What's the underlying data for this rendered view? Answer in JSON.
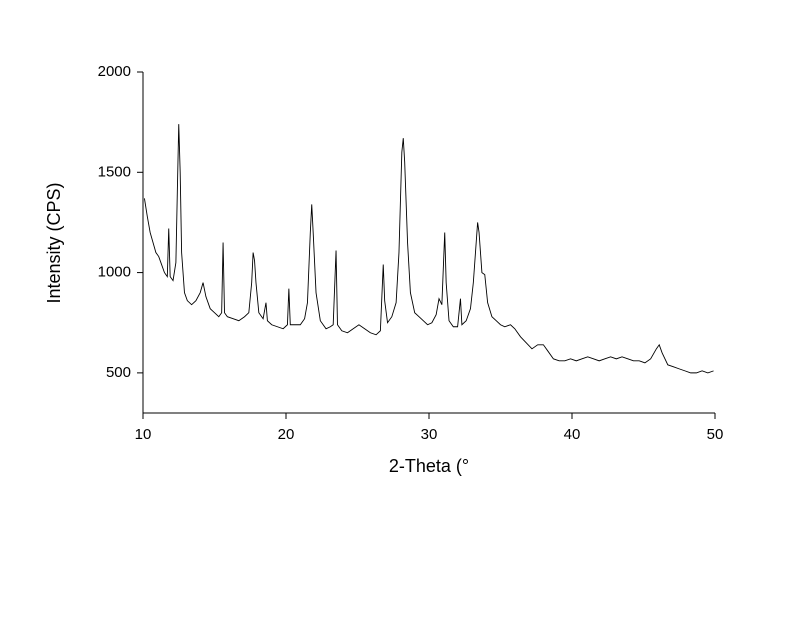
{
  "chart_data": {
    "type": "line",
    "xlabel": "2-Theta (°",
    "ylabel": "Intensity (CPS)",
    "color": "#000000",
    "xlim": [
      10,
      50
    ],
    "xticks": [
      10,
      20,
      30,
      40,
      50
    ],
    "ylim": [
      300,
      2000
    ],
    "yticks": [
      500,
      1000,
      1500,
      2000
    ],
    "grid": false,
    "x": [
      10.1,
      10.3,
      10.5,
      10.7,
      10.9,
      11.1,
      11.3,
      11.5,
      11.7,
      11.8,
      11.9,
      12.1,
      12.3,
      12.4,
      12.5,
      12.6,
      12.7,
      12.9,
      13.1,
      13.4,
      13.7,
      14.0,
      14.2,
      14.4,
      14.7,
      15.0,
      15.3,
      15.5,
      15.6,
      15.7,
      15.9,
      16.3,
      16.7,
      17.1,
      17.4,
      17.6,
      17.7,
      17.8,
      17.9,
      18.1,
      18.4,
      18.6,
      18.7,
      19.0,
      19.4,
      19.8,
      20.1,
      20.2,
      20.3,
      20.6,
      21.0,
      21.3,
      21.5,
      21.7,
      21.8,
      21.9,
      22.1,
      22.4,
      22.8,
      23.1,
      23.3,
      23.5,
      23.6,
      23.9,
      24.3,
      24.7,
      25.1,
      25.5,
      25.9,
      26.3,
      26.6,
      26.8,
      26.9,
      27.1,
      27.4,
      27.7,
      27.9,
      28.1,
      28.2,
      28.3,
      28.5,
      28.7,
      29.0,
      29.3,
      29.6,
      29.9,
      30.2,
      30.5,
      30.7,
      30.9,
      31.1,
      31.2,
      31.4,
      31.7,
      32.0,
      32.2,
      32.3,
      32.6,
      32.9,
      33.1,
      33.3,
      33.4,
      33.5,
      33.7,
      33.9,
      34.1,
      34.4,
      34.7,
      35.0,
      35.3,
      35.7,
      36.0,
      36.4,
      36.8,
      37.2,
      37.6,
      38.0,
      38.3,
      38.7,
      39.1,
      39.5,
      39.9,
      40.3,
      40.7,
      41.1,
      41.5,
      41.9,
      42.3,
      42.7,
      43.1,
      43.5,
      43.9,
      44.3,
      44.7,
      45.1,
      45.5,
      45.9,
      46.1,
      46.3,
      46.7,
      47.1,
      47.5,
      47.9,
      48.3,
      48.7,
      49.1,
      49.5,
      49.9
    ],
    "values": [
      1370,
      1280,
      1200,
      1150,
      1100,
      1080,
      1040,
      1000,
      980,
      1220,
      980,
      960,
      1050,
      1400,
      1740,
      1500,
      1100,
      900,
      860,
      840,
      860,
      900,
      950,
      880,
      820,
      800,
      780,
      800,
      1150,
      800,
      780,
      770,
      760,
      780,
      800,
      950,
      1100,
      1060,
      950,
      800,
      770,
      850,
      760,
      740,
      730,
      720,
      740,
      920,
      740,
      740,
      740,
      770,
      850,
      1200,
      1340,
      1200,
      900,
      760,
      720,
      730,
      740,
      1110,
      740,
      710,
      700,
      720,
      740,
      720,
      700,
      690,
      710,
      1040,
      860,
      750,
      780,
      850,
      1100,
      1600,
      1670,
      1550,
      1150,
      900,
      800,
      780,
      760,
      740,
      750,
      790,
      870,
      840,
      1200,
      950,
      760,
      730,
      730,
      870,
      740,
      760,
      820,
      950,
      1150,
      1250,
      1200,
      1000,
      990,
      850,
      780,
      760,
      740,
      730,
      740,
      720,
      680,
      650,
      620,
      640,
      640,
      610,
      570,
      560,
      560,
      570,
      560,
      570,
      580,
      570,
      560,
      570,
      580,
      570,
      580,
      570,
      560,
      560,
      550,
      570,
      620,
      640,
      600,
      540,
      530,
      520,
      510,
      500,
      500,
      510,
      500,
      510
    ]
  }
}
